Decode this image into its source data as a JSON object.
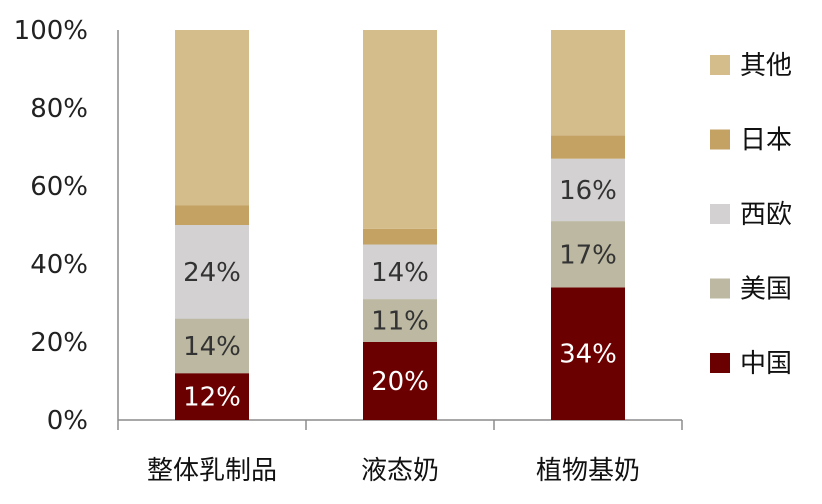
{
  "chart_data": {
    "type": "bar",
    "stacked": true,
    "categories": [
      "整体乳制品",
      "液态奶",
      "植物基奶"
    ],
    "yticks": [
      "0%",
      "20%",
      "40%",
      "60%",
      "80%",
      "100%"
    ],
    "ylim": [
      0,
      100
    ],
    "legend_position": "right",
    "series": [
      {
        "name": "中国",
        "color": "#6b0000",
        "values": [
          12,
          20,
          34
        ],
        "labels": [
          "12%",
          "20%",
          "34%"
        ],
        "label_color": "#ffffff"
      },
      {
        "name": "美国",
        "color": "#bcb8a1",
        "values": [
          14,
          11,
          17
        ],
        "labels": [
          "14%",
          "11%",
          "17%"
        ],
        "label_color": "#333333"
      },
      {
        "name": "西欧",
        "color": "#d3d1d2",
        "values": [
          24,
          14,
          16
        ],
        "labels": [
          "24%",
          "14%",
          "16%"
        ],
        "label_color": "#333333"
      },
      {
        "name": "日本",
        "color": "#c3a263",
        "values": [
          5,
          4,
          6
        ],
        "labels": [
          "",
          "",
          ""
        ],
        "label_color": "#333333"
      },
      {
        "name": "其他",
        "color": "#d4bc8b",
        "values": [
          45,
          51,
          27
        ],
        "labels": [
          "",
          "",
          ""
        ],
        "label_color": "#333333"
      }
    ]
  }
}
